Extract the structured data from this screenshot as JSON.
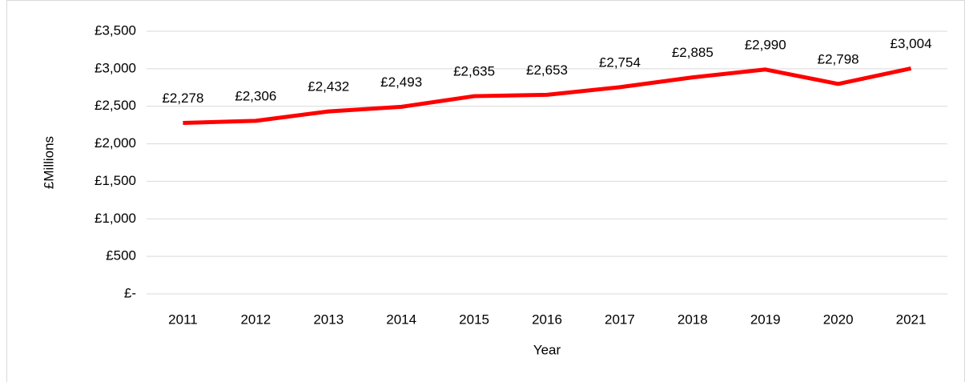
{
  "chart_data": {
    "type": "line",
    "categories": [
      "2011",
      "2012",
      "2013",
      "2014",
      "2015",
      "2016",
      "2017",
      "2018",
      "2019",
      "2020",
      "2021"
    ],
    "series": [
      {
        "name": "£Millions",
        "color": "#ff0000",
        "values": [
          2278,
          2306,
          2432,
          2493,
          2635,
          2653,
          2754,
          2885,
          2990,
          2798,
          3004
        ],
        "value_labels": [
          "£2,278",
          "£2,306",
          "£2,432",
          "£2,493",
          "£2,635",
          "£2,653",
          "£2,754",
          "£2,885",
          "£2,990",
          "£2,798",
          "£3,004"
        ]
      }
    ],
    "ylim": [
      0,
      3500
    ],
    "yticks": [
      {
        "value": 0,
        "label": "£-"
      },
      {
        "value": 500,
        "label": "£500"
      },
      {
        "value": 1000,
        "label": "£1,000"
      },
      {
        "value": 1500,
        "label": "£1,500"
      },
      {
        "value": 2000,
        "label": "£2,000"
      },
      {
        "value": 2500,
        "label": "£2,500"
      },
      {
        "value": 3000,
        "label": "£3,000"
      },
      {
        "value": 3500,
        "label": "£3,500"
      }
    ],
    "ylabel": "£Millions",
    "xlabel": "Year",
    "grid": true
  }
}
